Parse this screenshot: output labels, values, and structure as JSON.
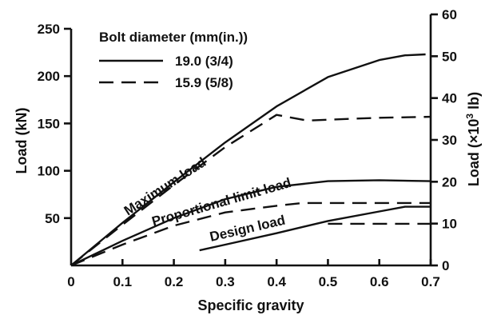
{
  "chart_data": {
    "type": "line",
    "xlabel": "Specific gravity",
    "ylabel": "Load (kN)",
    "ylabel_right_prefix": "Load (×10",
    "ylabel_right_exp": "3",
    "ylabel_right_suffix": " lb)",
    "xlim": [
      0,
      0.7
    ],
    "ylim": [
      0,
      250
    ],
    "ylim_right": [
      0,
      60
    ],
    "x_ticks": [
      "0",
      "0.1",
      "0.2",
      "0.3",
      "0.4",
      "0.5",
      "0.6",
      "0.7"
    ],
    "y_ticks": [
      "50",
      "100",
      "150",
      "200",
      "250"
    ],
    "y_right_ticks": [
      "0",
      "10",
      "20",
      "30",
      "40",
      "50",
      "60"
    ],
    "grid": false,
    "legend": {
      "title": "Bolt diameter (mm(in.))",
      "placement": "top-left",
      "entries": [
        {
          "label": "19.0 (3/4)",
          "style": "solid"
        },
        {
          "label": "15.9 (5/8)",
          "style": "dashed"
        }
      ]
    },
    "annotations": {
      "maximum": "Maximum load",
      "proportional": "Proportional limit load",
      "design": "Design load"
    },
    "series": [
      {
        "group": "maximum",
        "style": "solid",
        "x": [
          0,
          0.1,
          0.2,
          0.3,
          0.4,
          0.5,
          0.6,
          0.65,
          0.69
        ],
        "y": [
          0,
          45,
          88,
          130,
          168,
          199,
          217,
          222,
          223
        ]
      },
      {
        "group": "maximum",
        "style": "dashed",
        "x": [
          0,
          0.1,
          0.2,
          0.3,
          0.4,
          0.46,
          0.5,
          0.6,
          0.7
        ],
        "y": [
          0,
          43,
          85,
          125,
          159,
          153,
          154,
          156,
          157
        ]
      },
      {
        "group": "proportional",
        "style": "solid",
        "x": [
          0,
          0.1,
          0.2,
          0.3,
          0.4,
          0.5,
          0.6,
          0.7
        ],
        "y": [
          0,
          26,
          50,
          70,
          83,
          89,
          90,
          89
        ]
      },
      {
        "group": "proportional",
        "style": "dashed",
        "x": [
          0,
          0.1,
          0.2,
          0.3,
          0.4,
          0.45,
          0.5,
          0.6,
          0.7
        ],
        "y": [
          0,
          22,
          42,
          56,
          63,
          66,
          66,
          66,
          66
        ]
      },
      {
        "group": "design",
        "style": "solid",
        "x": [
          0.25,
          0.3,
          0.4,
          0.5,
          0.6,
          0.65,
          0.7
        ],
        "y": [
          16,
          22,
          34,
          47,
          57,
          62,
          62
        ]
      },
      {
        "group": "design",
        "style": "dashed",
        "x": [
          0.5,
          0.55,
          0.6,
          0.7
        ],
        "y": [
          44,
          44,
          44,
          44
        ]
      }
    ]
  }
}
